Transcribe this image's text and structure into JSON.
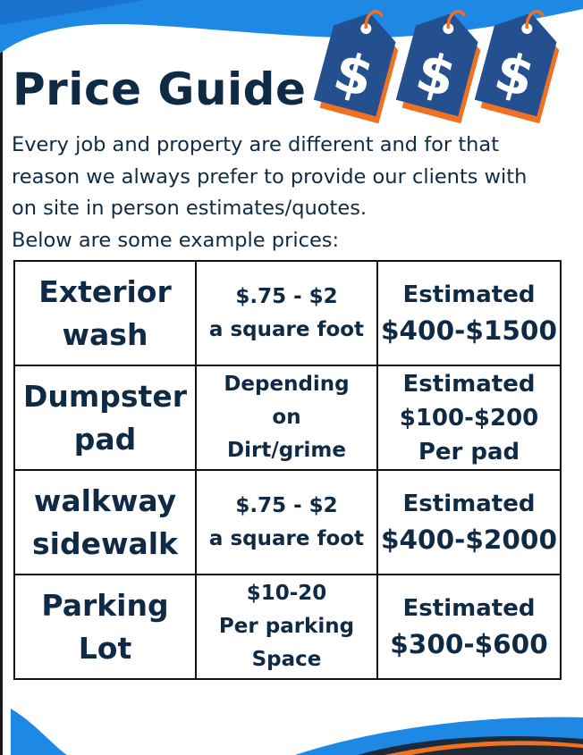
{
  "title": "Price Guide",
  "intro_lines": [
    "Every job and property are different and for that",
    "reason we always prefer to provide our clients with",
    "on site in person estimates/quotes.",
    "Below are some example prices:"
  ],
  "price_tag_symbol": "$",
  "colors": {
    "navy": "#0f2a44",
    "tag_blue": "#25508f",
    "accent_orange": "#f07122",
    "wave_blue": "#1e88e5",
    "wave_dark": "#1b2b3a"
  },
  "rows": [
    {
      "service": [
        "Exterior",
        "wash"
      ],
      "rate": [
        "$.75 - $2",
        "a square foot"
      ],
      "estimate": [
        "Estimated",
        "$400-$1500"
      ]
    },
    {
      "service": [
        "Dumpster",
        "pad"
      ],
      "rate": [
        "Depending",
        "on",
        "Dirt/grime"
      ],
      "estimate": [
        "Estimated",
        "$100-$200",
        "Per pad"
      ]
    },
    {
      "service": [
        "walkway",
        "sidewalk"
      ],
      "rate": [
        "$.75 - $2",
        "a square foot"
      ],
      "estimate": [
        "Estimated",
        "$400-$2000"
      ]
    },
    {
      "service": [
        "Parking",
        "Lot"
      ],
      "rate": [
        "$10-20",
        "Per parking",
        "Space"
      ],
      "estimate": [
        "Estimated",
        "$300-$600"
      ]
    }
  ]
}
